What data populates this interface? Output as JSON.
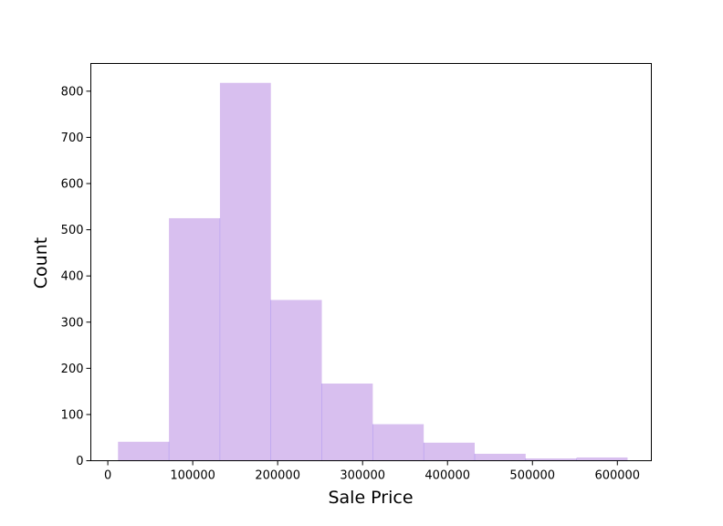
{
  "chart_data": {
    "type": "bar",
    "title": "",
    "xlabel": "Sale Price",
    "ylabel": "Count",
    "xlim": [
      -20000,
      640000
    ],
    "ylim": [
      0,
      860
    ],
    "xticks": [
      0,
      100000,
      200000,
      300000,
      400000,
      500000,
      600000
    ],
    "yticks": [
      0,
      100,
      200,
      300,
      400,
      500,
      600,
      700,
      800
    ],
    "bins": [
      {
        "x0": 12000,
        "x1": 72000,
        "count": 41
      },
      {
        "x0": 72000,
        "x1": 132000,
        "count": 525
      },
      {
        "x0": 132000,
        "x1": 192000,
        "count": 818
      },
      {
        "x0": 192000,
        "x1": 252000,
        "count": 348
      },
      {
        "x0": 252000,
        "x1": 312000,
        "count": 167
      },
      {
        "x0": 312000,
        "x1": 372000,
        "count": 79
      },
      {
        "x0": 372000,
        "x1": 432000,
        "count": 39
      },
      {
        "x0": 432000,
        "x1": 492000,
        "count": 15
      },
      {
        "x0": 492000,
        "x1": 552000,
        "count": 5
      },
      {
        "x0": 552000,
        "x1": 612000,
        "count": 7
      }
    ],
    "bar_color": "#d8bfef",
    "edge_color": "#b39cf0",
    "grid": false,
    "legend": "none"
  }
}
